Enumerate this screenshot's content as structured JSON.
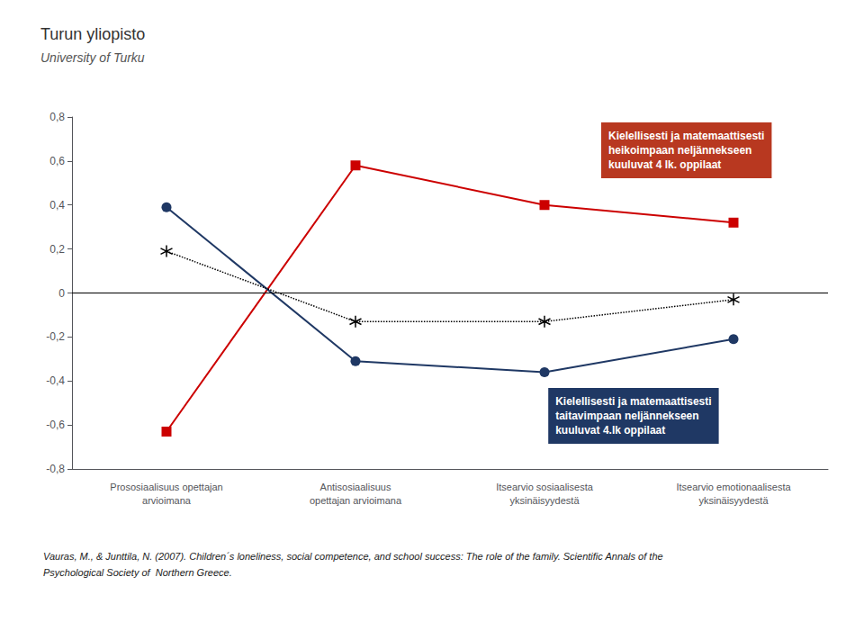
{
  "chart_data": {
    "type": "line",
    "title": "Turun yliopisto",
    "subtitle": "University of Turku",
    "categories": [
      "Prososiaalisuus opettajan\narvioimana",
      "Antisosiaalisuus\nopettajan arvioimana",
      "Itsearvio sosiaalisesta\nyksinäisyydestä",
      "Itsearvio emotionaalisesta\nyksinäisyydestä"
    ],
    "series": [
      {
        "color": "#CC0000",
        "marker": "square",
        "line_style": "solid",
        "values": [
          -0.63,
          0.58,
          0.4,
          0.32
        ]
      },
      {
        "color": "#1F3864",
        "marker": "circle",
        "line_style": "solid",
        "values": [
          0.39,
          -0.31,
          -0.36,
          -0.21
        ]
      },
      {
        "color": "#000000",
        "marker": "asterisk",
        "line_style": "dotted",
        "values": [
          0.19,
          -0.13,
          -0.13,
          -0.03
        ]
      }
    ],
    "ylim": [
      -0.8,
      0.8
    ],
    "yticks": [
      {
        "value": -0.8,
        "label": "-0,8"
      },
      {
        "value": -0.6,
        "label": "-0,6"
      },
      {
        "value": -0.4,
        "label": "-0,4"
      },
      {
        "value": -0.2,
        "label": "-0,2"
      },
      0,
      {
        "value": 0.2,
        "label": "0,2"
      },
      {
        "value": 0.4,
        "label": "0,4"
      },
      {
        "value": 0.6,
        "label": "0,6"
      },
      {
        "value": 0.8,
        "label": "0,8"
      }
    ],
    "grid": false,
    "annotations": [
      {
        "text": "Kielellisesti ja matemaattisesti\nheikoimpaan neljännekseen\nkuuluvat 4 lk. oppilaat",
        "color": "#B83820"
      },
      {
        "text": "Kielellisesti ja matemaattisesti\ntaitavimpaan neljännekseen\nkuuluvat 4.lk oppilaat",
        "color": "#1F3864"
      }
    ],
    "footer": [
      "Vauras, M., & Junttila, N. (2007). Children´s loneliness, social competence, and school success: The role of the family. Scientific Annals of the",
      "Psychological Society of  Northern Greece."
    ]
  }
}
